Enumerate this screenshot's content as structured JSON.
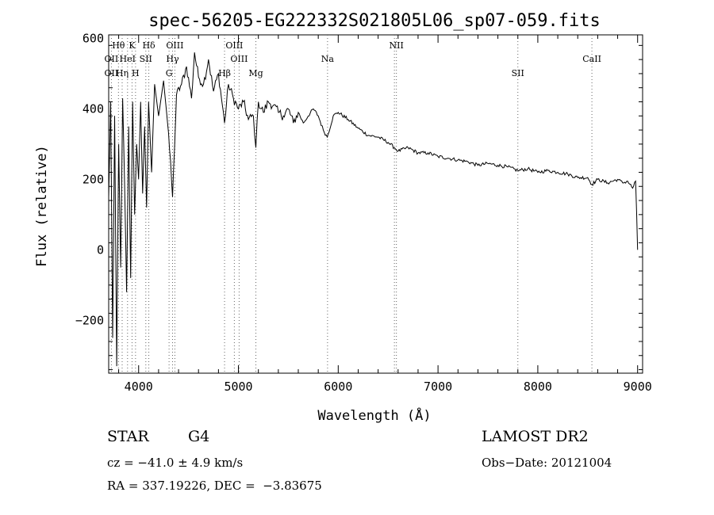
{
  "chart_data": {
    "type": "line",
    "title": "spec-56205-EG222332S021805L06_sp07-059.fits",
    "xlabel": "Wavelength (Å)",
    "ylabel": "Flux (relative)",
    "xlim": [
      3700,
      9050
    ],
    "ylim": [
      -350,
      610
    ],
    "x_ticks": [
      4000,
      5000,
      6000,
      7000,
      8000,
      9000
    ],
    "y_ticks": [
      -200,
      0,
      200,
      400,
      600
    ],
    "grid": false,
    "series": [
      {
        "x": [
          3700,
          3720,
          3740,
          3760,
          3780,
          3800,
          3820,
          3840,
          3860,
          3880,
          3900,
          3920,
          3940,
          3960,
          3980,
          4000,
          4020,
          4040,
          4060,
          4080,
          4100,
          4130,
          4160,
          4200,
          4250,
          4300,
          4340,
          4380,
          4430,
          4480,
          4530,
          4560,
          4600,
          4650,
          4700,
          4750,
          4800,
          4861,
          4900,
          4950,
          5000,
          5050,
          5100,
          5150,
          5175,
          5200,
          5250,
          5300,
          5350,
          5400,
          5450,
          5500,
          5550,
          5600,
          5650,
          5700,
          5750,
          5800,
          5850,
          5890,
          5950,
          6000,
          6100,
          6200,
          6300,
          6400,
          6500,
          6563,
          6600,
          6700,
          6800,
          6900,
          7000,
          7100,
          7200,
          7300,
          7400,
          7500,
          7600,
          7700,
          7800,
          7900,
          8000,
          8100,
          8200,
          8300,
          8400,
          8500,
          8542,
          8600,
          8700,
          8800,
          8850,
          8900,
          8950,
          8980,
          9000
        ],
        "y": [
          150,
          420,
          -250,
          380,
          -330,
          300,
          -50,
          430,
          180,
          -120,
          350,
          -80,
          420,
          100,
          300,
          200,
          420,
          160,
          350,
          120,
          420,
          220,
          470,
          380,
          480,
          330,
          150,
          440,
          470,
          520,
          430,
          560,
          490,
          470,
          540,
          450,
          500,
          360,
          470,
          430,
          400,
          420,
          370,
          380,
          290,
          420,
          390,
          420,
          410,
          390,
          380,
          400,
          360,
          390,
          360,
          380,
          400,
          380,
          340,
          320,
          380,
          390,
          370,
          345,
          325,
          320,
          305,
          290,
          280,
          290,
          275,
          275,
          265,
          260,
          255,
          250,
          240,
          245,
          240,
          235,
          225,
          230,
          220,
          225,
          220,
          215,
          205,
          205,
          185,
          200,
          190,
          200,
          190,
          195,
          175,
          195,
          0
        ]
      }
    ],
    "annotations": [
      {
        "label": "Hθ",
        "x": 3798,
        "row": 1
      },
      {
        "label": "K",
        "x": 3934,
        "row": 1
      },
      {
        "label": "Hδ",
        "x": 4102,
        "row": 1
      },
      {
        "label": "OIII",
        "x": 4363,
        "row": 1
      },
      {
        "label": "OIII",
        "x": 4959,
        "row": 1
      },
      {
        "label": "NII",
        "x": 6583,
        "row": 1
      },
      {
        "label": "OII",
        "x": 3727,
        "row": 2
      },
      {
        "label": "HeI",
        "x": 3889,
        "row": 2
      },
      {
        "label": "SII",
        "x": 4072,
        "row": 2
      },
      {
        "label": "Hγ",
        "x": 4340,
        "row": 2
      },
      {
        "label": "OIII",
        "x": 5007,
        "row": 2
      },
      {
        "label": "Na",
        "x": 5893,
        "row": 2
      },
      {
        "label": "CaII",
        "x": 8542,
        "row": 2
      },
      {
        "label": "OII",
        "x": 3727,
        "row": 3
      },
      {
        "label": "Hη",
        "x": 3835,
        "row": 3
      },
      {
        "label": "H",
        "x": 3969,
        "row": 3
      },
      {
        "label": "G",
        "x": 4305,
        "row": 3
      },
      {
        "label": "Hβ",
        "x": 4861,
        "row": 3
      },
      {
        "label": "Mg",
        "x": 5175,
        "row": 3
      },
      {
        "label": "SII",
        "x": 7800,
        "row": 3
      }
    ],
    "line_markers": [
      3727,
      3798,
      3835,
      3889,
      3934,
      3969,
      4072,
      4102,
      4305,
      4340,
      4363,
      4861,
      4959,
      5007,
      5175,
      5893,
      6563,
      6583,
      7800,
      8542
    ]
  },
  "info": {
    "class": "STAR",
    "subclass": "G4",
    "survey": "LAMOST DR2",
    "cz": "cz = −41.0 ± 4.9 km/s",
    "obs_date": "Obs−Date: 20121004",
    "coords": "RA = 337.19226, DEC =  −3.83675"
  }
}
